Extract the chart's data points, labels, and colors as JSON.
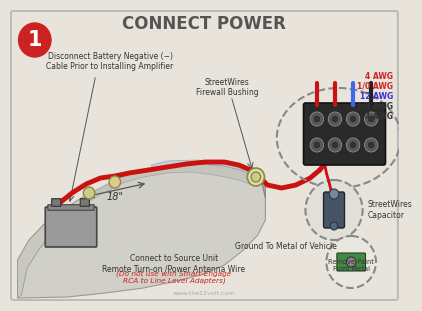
{
  "title": "CONNECT POWER",
  "title_fontsize": 12,
  "title_color": "#555555",
  "bg_color": "#e8e4dc",
  "border_color": "#bbbbbb",
  "step_number": "1",
  "step_circle_color": "#cc2222",
  "labels": {
    "disconnect": "Disconnect Battery Negative (−)\nCable Prior to Installing Amplifier",
    "firewall": "StreetWires\nFirewall Bushing",
    "distance": "18\"",
    "awg_4_top": "4 AWG",
    "awg_1_0": "1/0 AWG",
    "awg_12": "12 AWG",
    "awg_1_0b": "1/0 AWG",
    "awg_4_bot": "4 AWG",
    "capacitor": "StreetWires\nCapacitor",
    "ground": "Ground To Metal of Vehicle",
    "remove_paint": "Remove Paint\nFrom Metal",
    "connect": "Connect to Source Unit\nRemote Turn-on /Power Antenna Wire",
    "rca_note": "(Do not use with Smart-Engage\nRCA to Line Level Adapters)",
    "website": "www.the12volt.com"
  },
  "label_colors": {
    "awg_4_top": "#cc2222",
    "awg_1_0": "#cc2222",
    "awg_12": "#3333cc",
    "awg_1_0b": "#333333",
    "awg_4_bot": "#333333",
    "rca_note": "#cc2222",
    "general": "#333333"
  },
  "wire_colors": {
    "main_red": "#cc1111",
    "black": "#222222",
    "blue": "#4466ee",
    "gray": "#888888"
  }
}
